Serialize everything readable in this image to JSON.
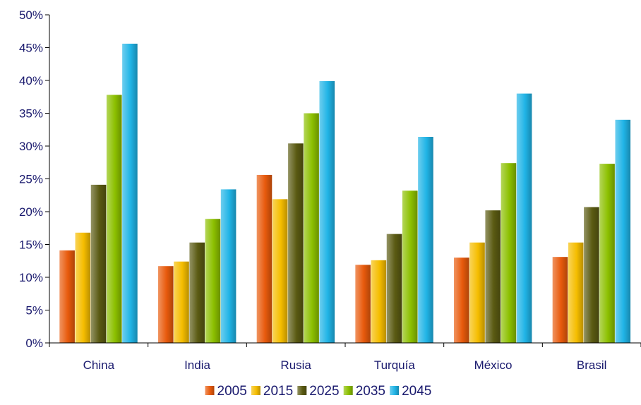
{
  "chart_data": {
    "type": "bar",
    "title": "",
    "xlabel": "",
    "ylabel": "",
    "categories": [
      "China",
      "India",
      "Rusia",
      "Turquía",
      "México",
      "Brasil"
    ],
    "series": [
      {
        "name": "2005",
        "color": "#e85a0c",
        "values": [
          14.1,
          11.7,
          25.6,
          11.9,
          13.0,
          13.1
        ]
      },
      {
        "name": "2015",
        "color": "#f5bd00",
        "values": [
          16.8,
          12.4,
          21.9,
          12.6,
          15.3,
          15.3
        ]
      },
      {
        "name": "2025",
        "color": "#5a5a12",
        "values": [
          24.1,
          15.3,
          30.4,
          16.6,
          20.2,
          20.7
        ]
      },
      {
        "name": "2035",
        "color": "#8cc000",
        "values": [
          37.8,
          18.9,
          35.0,
          23.2,
          27.4,
          27.3
        ]
      },
      {
        "name": "2045",
        "color": "#20b4e6",
        "values": [
          45.6,
          23.4,
          39.9,
          31.4,
          38.0,
          34.0
        ]
      }
    ],
    "ylim": [
      0,
      50
    ],
    "yticks": [
      "0%",
      "5%",
      "10%",
      "15%",
      "20%",
      "25%",
      "30%",
      "35%",
      "40%",
      "45%",
      "50%"
    ],
    "grid": false,
    "legend_position": "bottom"
  }
}
